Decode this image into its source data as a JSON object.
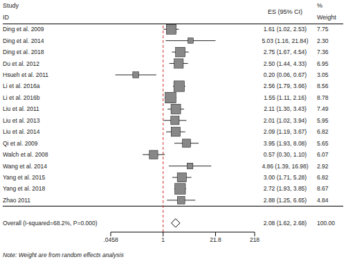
{
  "chart_data": {
    "type": "forest",
    "log": "x",
    "grid": false,
    "tick_labels": "x",
    "column_headers": {
      "study": [
        "Study",
        "ID"
      ],
      "es": "ES (95% CI)",
      "weight": [
        "%",
        "Weight"
      ]
    },
    "categories": [
      "Ding et al. 2009",
      "Ding et al. 2014",
      "Ding et al. 2018",
      "Du et al. 2012",
      "Hsueh et al. 2011",
      "Li et al. 2016a",
      "Li et al. 2016b",
      "Liu et al. 2011",
      "Liu et al. 2013",
      "Liu et al. 2014",
      "Qi et al. 2009",
      "Walch et al. 2008",
      "Wang et al. 2014",
      "Yang et al. 2015",
      "Yang et al. 2018",
      "Zhao 2011"
    ],
    "values": [
      1.61,
      5.03,
      2.75,
      2.5,
      0.2,
      2.56,
      1.55,
      2.11,
      2.01,
      2.09,
      3.95,
      0.57,
      4.86,
      3.0,
      2.72,
      2.88
    ],
    "lo": [
      1.02,
      1.16,
      1.67,
      1.44,
      0.06,
      1.79,
      1.11,
      1.3,
      1.02,
      1.19,
      1.93,
      0.3,
      1.39,
      1.71,
      1.93,
      1.25
    ],
    "hi": [
      2.53,
      21.84,
      4.54,
      4.33,
      0.67,
      3.66,
      2.16,
      3.43,
      3.94,
      3.67,
      8.08,
      1.1,
      16.98,
      5.28,
      3.85,
      6.65
    ],
    "value_labels": [
      "1.61 (1.02, 2.53)",
      "5.03 (1.16, 21.84)",
      "2.75 (1.67, 4.54)",
      "2.50 (1.44, 4.33)",
      "0.20 (0.06, 0.67)",
      "2.56 (1.79, 3.66)",
      "1.55 (1.11, 2.16)",
      "2.11 (1.30, 3.43)",
      "2.01 (1.02, 3.94)",
      "2.09 (1.19, 3.67)",
      "3.95 (1.93, 8.08)",
      "0.57 (0.30, 1.10)",
      "4.86 (1.39, 16.98)",
      "3.00 (1.71, 5.28)",
      "2.72 (1.93, 3.85)",
      "2.88 (1.25, 6.65)"
    ],
    "weights": [
      7.75,
      2.3,
      7.36,
      6.95,
      3.05,
      8.56,
      8.78,
      7.49,
      5.95,
      6.82,
      5.65,
      6.07,
      2.92,
      6.82,
      8.67,
      4.84
    ],
    "weight_labels": [
      "7.75",
      "2.30",
      "7.36",
      "6.95",
      "3.05",
      "8.56",
      "8.78",
      "7.49",
      "5.95",
      "6.82",
      "5.65",
      "6.07",
      "2.92",
      "6.82",
      "8.67",
      "4.84"
    ],
    "color": "#888888",
    "overall": {
      "name": "Overall (I-squared=68.2%, P=0.000)",
      "value": 2.08,
      "lo": 1.62,
      "hi": 2.68,
      "value_label": "2.08 (1.62, 2.68)",
      "weight": 100.0,
      "weight_label": "100.00"
    },
    "reference": {
      "value": 1,
      "color": "#cc2222",
      "line_style": "dashed"
    },
    "xlim": [
      0.0458,
      218
    ],
    "xticks": [
      {
        "value": 0.0458,
        "label": ".0458"
      },
      1,
      21.8,
      218
    ],
    "note": "Note: Weight are from random effects analysis"
  }
}
